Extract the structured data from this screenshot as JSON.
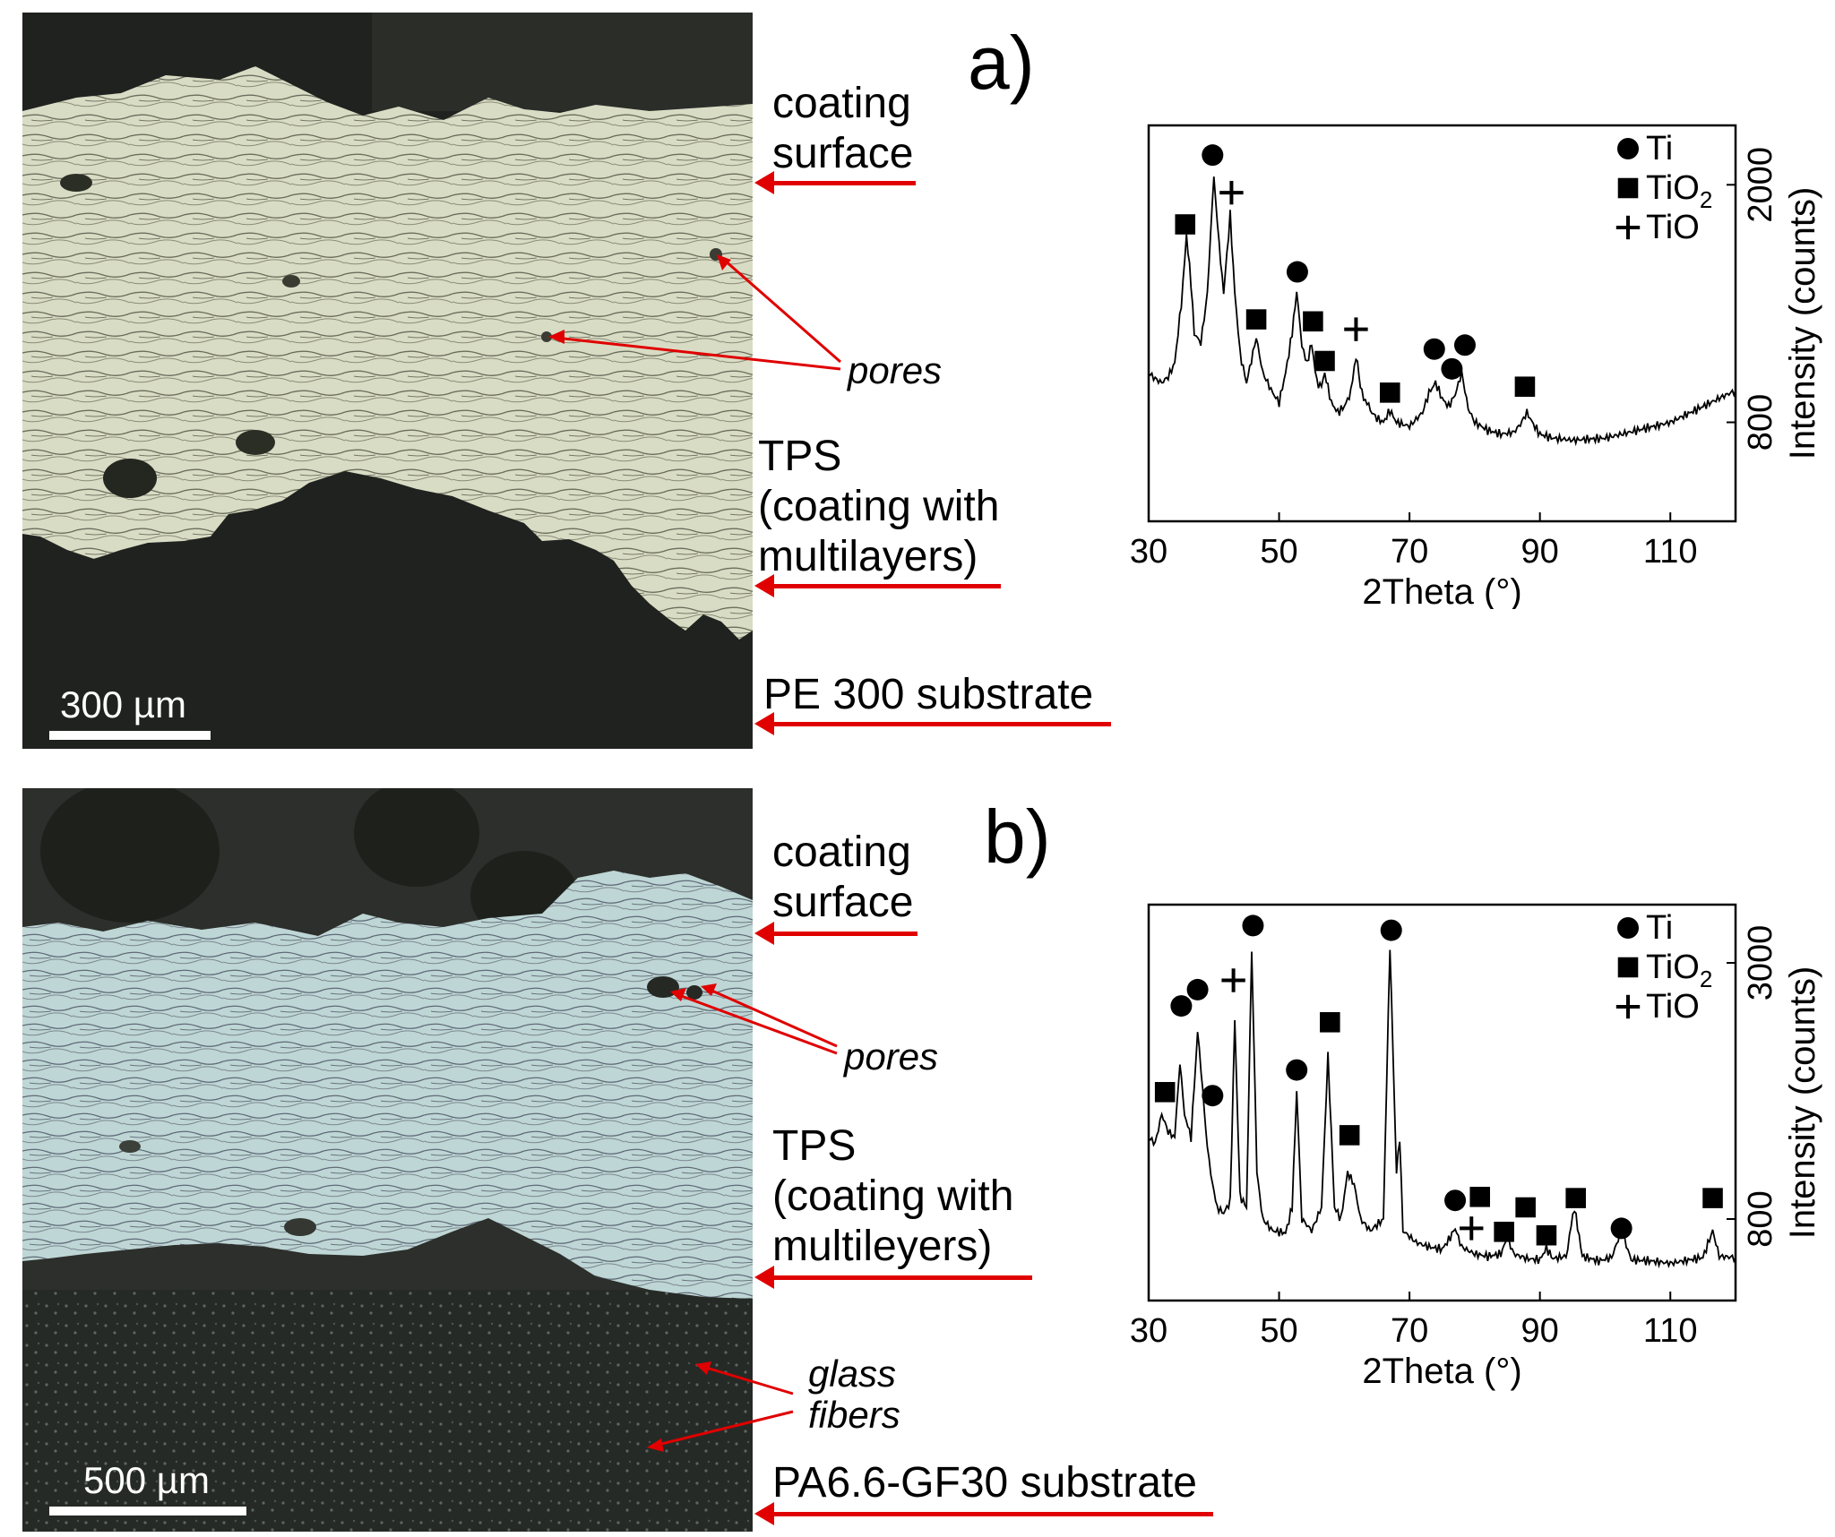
{
  "panels": [
    {
      "letter": "a)",
      "scale_bar": "300 µm",
      "labels": {
        "coating_surface_1": "coating",
        "coating_surface_2": "surface",
        "pores": "pores",
        "tps_1": "TPS",
        "tps_2": "(coating with",
        "tps_3": "multilayers)",
        "substrate": "PE 300 substrate"
      }
    },
    {
      "letter": "b)",
      "scale_bar": "500 µm",
      "labels": {
        "coating_surface_1": "coating",
        "coating_surface_2": "surface",
        "pores": "pores",
        "tps_1": "TPS",
        "tps_2": "(coating with",
        "tps_3": "multileyers)",
        "glass_1": "glass",
        "glass_2": "fibers",
        "substrate": "PA6.6-GF30 substrate"
      }
    }
  ],
  "colors": {
    "arrow": "#e00000",
    "coating_a": "#d9dcc4",
    "coating_b": "#bfd7d6",
    "substrate_dark": "#23251f"
  },
  "chart_data": [
    {
      "type": "line",
      "xlabel": "2Theta (°)",
      "ylabel": "Intensity (counts)",
      "xlim": [
        30,
        120
      ],
      "x_ticks": [
        "30",
        "50",
        "70",
        "90",
        "110"
      ],
      "y_ticks": [
        "800",
        "2000"
      ],
      "y_tick_values": [
        800,
        2000
      ],
      "ylim": [
        300,
        2300
      ],
      "legend": [
        {
          "symbol": "circle",
          "label": "Ti"
        },
        {
          "symbol": "square",
          "label": "TiO",
          "sub": "2"
        },
        {
          "symbol": "plus",
          "label": "TiO"
        }
      ],
      "legend_position": "top-right",
      "y_axis_side": "right",
      "series": [
        {
          "points": [
            [
              30,
              1050
            ],
            [
              31,
              1020
            ],
            [
              32,
              1000
            ],
            [
              33,
              1030
            ],
            [
              34,
              1100
            ],
            [
              35,
              1400
            ],
            [
              35.8,
              1750
            ],
            [
              36.5,
              1500
            ],
            [
              37,
              1250
            ],
            [
              38,
              1200
            ],
            [
              39,
              1450
            ],
            [
              40,
              2050
            ],
            [
              40.8,
              1700
            ],
            [
              41.5,
              1450
            ],
            [
              42.5,
              1850
            ],
            [
              43.2,
              1450
            ],
            [
              44,
              1150
            ],
            [
              45,
              1000
            ],
            [
              46,
              1150
            ],
            [
              46.5,
              1230
            ],
            [
              47.5,
              1050
            ],
            [
              49,
              950
            ],
            [
              50,
              900
            ],
            [
              51,
              1050
            ],
            [
              52,
              1250
            ],
            [
              52.7,
              1460
            ],
            [
              53.5,
              1200
            ],
            [
              54.3,
              1100
            ],
            [
              55,
              1200
            ],
            [
              55.8,
              1000
            ],
            [
              56.5,
              980
            ],
            [
              57,
              1050
            ],
            [
              58,
              900
            ],
            [
              59,
              850
            ],
            [
              60,
              880
            ],
            [
              61,
              950
            ],
            [
              61.8,
              1130
            ],
            [
              62.7,
              950
            ],
            [
              64,
              860
            ],
            [
              65,
              820
            ],
            [
              66,
              800
            ],
            [
              67,
              860
            ],
            [
              68,
              800
            ],
            [
              70,
              780
            ],
            [
              72,
              850
            ],
            [
              73,
              950
            ],
            [
              74,
              1000
            ],
            [
              75,
              920
            ],
            [
              76,
              880
            ],
            [
              77,
              940
            ],
            [
              78,
              1050
            ],
            [
              79,
              870
            ],
            [
              80,
              800
            ],
            [
              82,
              760
            ],
            [
              84,
              740
            ],
            [
              86,
              750
            ],
            [
              87,
              790
            ],
            [
              88,
              850
            ],
            [
              89,
              790
            ],
            [
              90,
              740
            ],
            [
              92,
              720
            ],
            [
              95,
              710
            ],
            [
              100,
              720
            ],
            [
              105,
              760
            ],
            [
              110,
              800
            ],
            [
              115,
              880
            ],
            [
              118,
              930
            ],
            [
              120,
              960
            ]
          ]
        }
      ],
      "markers": [
        {
          "symbol": "square",
          "x": 35.6,
          "y": 1800
        },
        {
          "symbol": "circle",
          "x": 39.8,
          "y": 2150
        },
        {
          "symbol": "plus",
          "x": 42.7,
          "y": 1960
        },
        {
          "symbol": "square",
          "x": 46.5,
          "y": 1320
        },
        {
          "symbol": "circle",
          "x": 52.8,
          "y": 1560
        },
        {
          "symbol": "square",
          "x": 55.2,
          "y": 1310
        },
        {
          "symbol": "square",
          "x": 57.0,
          "y": 1110
        },
        {
          "symbol": "plus",
          "x": 61.8,
          "y": 1270
        },
        {
          "symbol": "square",
          "x": 67.0,
          "y": 950
        },
        {
          "symbol": "circle",
          "x": 73.8,
          "y": 1170
        },
        {
          "symbol": "circle",
          "x": 76.5,
          "y": 1070
        },
        {
          "symbol": "circle",
          "x": 78.5,
          "y": 1190
        },
        {
          "symbol": "square",
          "x": 87.7,
          "y": 980
        }
      ]
    },
    {
      "type": "line",
      "xlabel": "2Theta (°)",
      "ylabel": "Intensity (counts)",
      "xlim": [
        30,
        120
      ],
      "x_ticks": [
        "30",
        "50",
        "70",
        "90",
        "110"
      ],
      "y_ticks": [
        "800",
        "3000"
      ],
      "y_tick_values": [
        800,
        3000
      ],
      "ylim": [
        100,
        3500
      ],
      "legend": [
        {
          "symbol": "circle",
          "label": "Ti"
        },
        {
          "symbol": "square",
          "label": "TiO",
          "sub": "2"
        },
        {
          "symbol": "plus",
          "label": "TiO"
        }
      ],
      "legend_position": "top-right",
      "y_axis_side": "right",
      "series": [
        {
          "points": [
            [
              30,
              1500
            ],
            [
              31,
              1450
            ],
            [
              32,
              1700
            ],
            [
              33,
              1550
            ],
            [
              34,
              1500
            ],
            [
              34.8,
              2150
            ],
            [
              35.5,
              1700
            ],
            [
              36.5,
              1500
            ],
            [
              37.5,
              2400
            ],
            [
              38.3,
              1900
            ],
            [
              39,
              1400
            ],
            [
              39.8,
              1100
            ],
            [
              40.5,
              900
            ],
            [
              41.5,
              850
            ],
            [
              42.5,
              950
            ],
            [
              43.2,
              2500
            ],
            [
              44,
              1000
            ],
            [
              45,
              900
            ],
            [
              45.8,
              3100
            ],
            [
              46.6,
              1200
            ],
            [
              47.5,
              800
            ],
            [
              49,
              700
            ],
            [
              51,
              680
            ],
            [
              52,
              900
            ],
            [
              52.7,
              1900
            ],
            [
              53.5,
              800
            ],
            [
              55,
              700
            ],
            [
              56.5,
              900
            ],
            [
              57.5,
              2200
            ],
            [
              58.5,
              900
            ],
            [
              59.5,
              800
            ],
            [
              60.5,
              1200
            ],
            [
              61.5,
              1100
            ],
            [
              62.5,
              800
            ],
            [
              64,
              700
            ],
            [
              66,
              800
            ],
            [
              67,
              3150
            ],
            [
              68,
              1200
            ],
            [
              68.5,
              1500
            ],
            [
              69,
              700
            ],
            [
              71,
              600
            ],
            [
              73,
              560
            ],
            [
              75,
              540
            ],
            [
              76,
              620
            ],
            [
              77,
              720
            ],
            [
              78,
              560
            ],
            [
              80,
              500
            ],
            [
              82,
              480
            ],
            [
              84,
              500
            ],
            [
              85,
              640
            ],
            [
              86,
              500
            ],
            [
              88,
              460
            ],
            [
              90,
              450
            ],
            [
              91,
              550
            ],
            [
              92,
              460
            ],
            [
              94,
              480
            ],
            [
              95.3,
              900
            ],
            [
              96.5,
              480
            ],
            [
              99,
              440
            ],
            [
              101,
              470
            ],
            [
              102.5,
              700
            ],
            [
              104,
              450
            ],
            [
              107,
              440
            ],
            [
              110,
              420
            ],
            [
              113,
              450
            ],
            [
              115,
              470
            ],
            [
              116.5,
              700
            ],
            [
              117.5,
              480
            ],
            [
              120,
              470
            ]
          ]
        }
      ],
      "markers": [
        {
          "symbol": "square",
          "x": 32.5,
          "y": 1890
        },
        {
          "symbol": "circle",
          "x": 35.0,
          "y": 2630
        },
        {
          "symbol": "circle",
          "x": 37.5,
          "y": 2770
        },
        {
          "symbol": "circle",
          "x": 39.8,
          "y": 1860
        },
        {
          "symbol": "plus",
          "x": 43.0,
          "y": 2850
        },
        {
          "symbol": "circle",
          "x": 46.0,
          "y": 3320
        },
        {
          "symbol": "circle",
          "x": 52.7,
          "y": 2080
        },
        {
          "symbol": "square",
          "x": 57.8,
          "y": 2490
        },
        {
          "symbol": "square",
          "x": 60.8,
          "y": 1520
        },
        {
          "symbol": "circle",
          "x": 67.2,
          "y": 3280
        },
        {
          "symbol": "circle",
          "x": 77.0,
          "y": 960
        },
        {
          "symbol": "square",
          "x": 80.8,
          "y": 990
        },
        {
          "symbol": "plus",
          "x": 79.5,
          "y": 720
        },
        {
          "symbol": "square",
          "x": 84.5,
          "y": 690
        },
        {
          "symbol": "square",
          "x": 87.8,
          "y": 900
        },
        {
          "symbol": "square",
          "x": 91.0,
          "y": 660
        },
        {
          "symbol": "square",
          "x": 95.5,
          "y": 980
        },
        {
          "symbol": "circle",
          "x": 102.5,
          "y": 720
        },
        {
          "symbol": "square",
          "x": 116.5,
          "y": 980
        }
      ]
    }
  ]
}
